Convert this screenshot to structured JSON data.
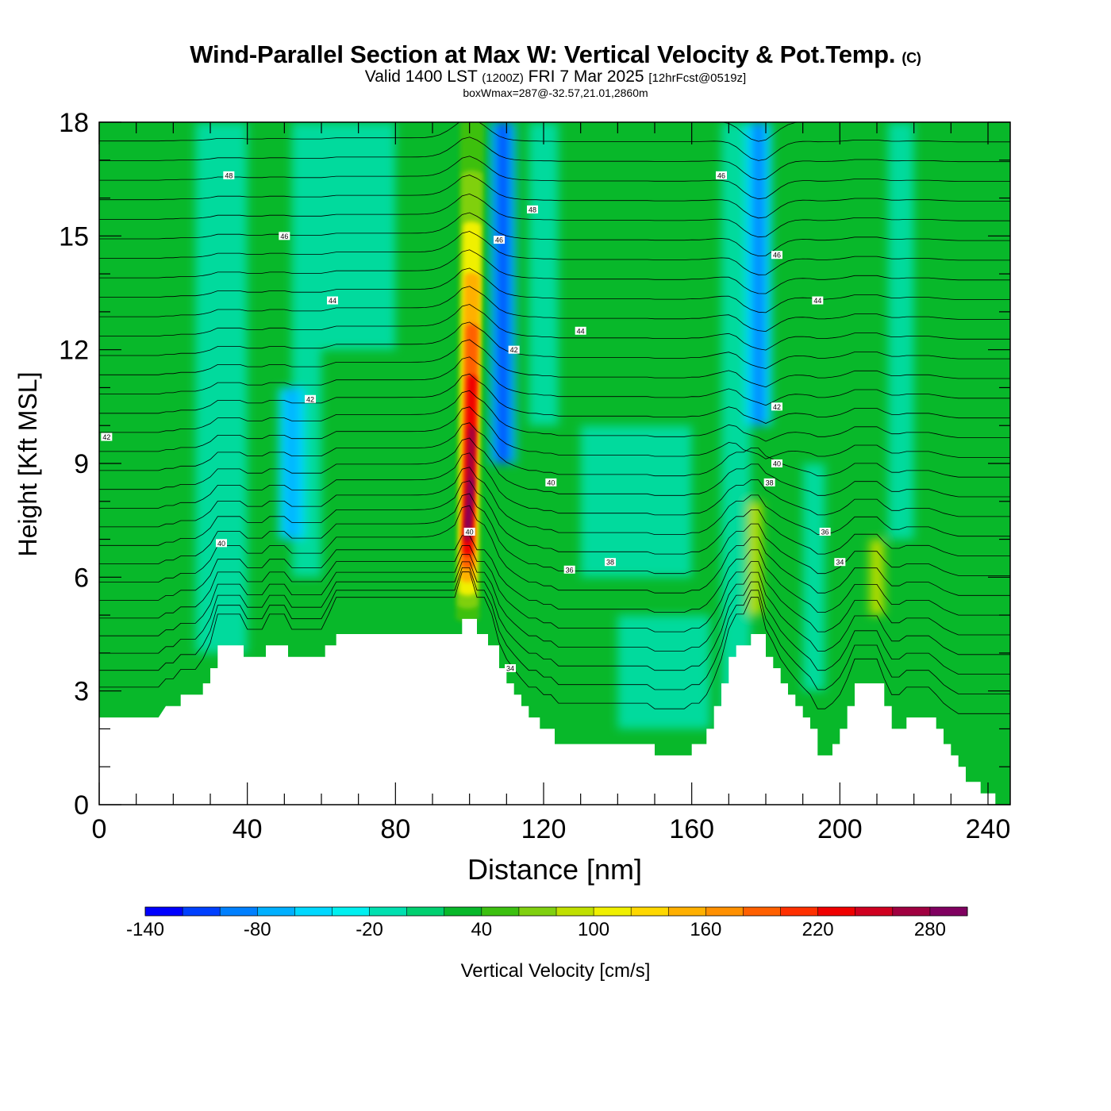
{
  "header": {
    "title": "Wind-Parallel Section at Max W: Vertical Velocity & Pot.Temp.",
    "copyright": "(C)",
    "valid_prefix": "Valid 1400 LST",
    "valid_utc": "(1200Z)",
    "valid_date": "FRI 7 Mar 2025",
    "forecast": "[12hrFcst@0519z]",
    "box_wmax": "boxWmax=287@-32.57,21.01,2860m"
  },
  "chart_data": {
    "type": "contour-section",
    "title": "Wind-Parallel Section at Max W: Vertical Velocity & Pot.Temp.",
    "xlabel": "Distance [nm]",
    "ylabel": "Height [Kft MSL]",
    "xlim": [
      0,
      246
    ],
    "ylim": [
      0,
      18
    ],
    "x_ticks": [
      "0",
      "40",
      "80",
      "120",
      "160",
      "200",
      "240"
    ],
    "y_ticks": [
      "0",
      "3",
      "6",
      "9",
      "12",
      "15",
      "18"
    ],
    "terrain_kft": [
      [
        0,
        2.3
      ],
      [
        16,
        2.3
      ],
      [
        18,
        2.6
      ],
      [
        22,
        2.6
      ],
      [
        22,
        2.9
      ],
      [
        28,
        2.9
      ],
      [
        28,
        3.2
      ],
      [
        30,
        3.2
      ],
      [
        30,
        3.6
      ],
      [
        32,
        3.6
      ],
      [
        32,
        4.2
      ],
      [
        39,
        4.2
      ],
      [
        39,
        3.9
      ],
      [
        45,
        3.9
      ],
      [
        45,
        4.2
      ],
      [
        51,
        4.2
      ],
      [
        51,
        3.9
      ],
      [
        61,
        3.9
      ],
      [
        61,
        4.2
      ],
      [
        64,
        4.2
      ],
      [
        64,
        4.5
      ],
      [
        98,
        4.5
      ],
      [
        98,
        4.9
      ],
      [
        102,
        4.9
      ],
      [
        102,
        4.5
      ],
      [
        105,
        4.5
      ],
      [
        105,
        4.2
      ],
      [
        108,
        4.2
      ],
      [
        108,
        3.6
      ],
      [
        110,
        3.6
      ],
      [
        110,
        3.2
      ],
      [
        112,
        3.2
      ],
      [
        112,
        2.9
      ],
      [
        114,
        2.9
      ],
      [
        114,
        2.6
      ],
      [
        116,
        2.6
      ],
      [
        116,
        2.3
      ],
      [
        119,
        2.3
      ],
      [
        119,
        2.0
      ],
      [
        123,
        2.0
      ],
      [
        123,
        1.6
      ],
      [
        150,
        1.6
      ],
      [
        150,
        1.3
      ],
      [
        160,
        1.3
      ],
      [
        160,
        1.6
      ],
      [
        164,
        1.6
      ],
      [
        164,
        2.0
      ],
      [
        166,
        2.0
      ],
      [
        166,
        2.6
      ],
      [
        168,
        2.6
      ],
      [
        168,
        3.2
      ],
      [
        170,
        3.2
      ],
      [
        170,
        3.9
      ],
      [
        172,
        3.9
      ],
      [
        172,
        4.2
      ],
      [
        176,
        4.2
      ],
      [
        176,
        4.5
      ],
      [
        180,
        4.5
      ],
      [
        180,
        3.9
      ],
      [
        182,
        3.9
      ],
      [
        182,
        3.6
      ],
      [
        184,
        3.6
      ],
      [
        184,
        3.2
      ],
      [
        186,
        3.2
      ],
      [
        186,
        2.9
      ],
      [
        188,
        2.9
      ],
      [
        188,
        2.6
      ],
      [
        190,
        2.6
      ],
      [
        190,
        2.3
      ],
      [
        192,
        2.3
      ],
      [
        192,
        2.0
      ],
      [
        194,
        2.0
      ],
      [
        194,
        1.3
      ],
      [
        198,
        1.3
      ],
      [
        198,
        1.6
      ],
      [
        200,
        1.6
      ],
      [
        200,
        2.0
      ],
      [
        202,
        2.0
      ],
      [
        202,
        2.6
      ],
      [
        204,
        2.6
      ],
      [
        204,
        3.2
      ],
      [
        212,
        3.2
      ],
      [
        212,
        2.6
      ],
      [
        214,
        2.6
      ],
      [
        214,
        2.0
      ],
      [
        218,
        2.0
      ],
      [
        218,
        2.3
      ],
      [
        226,
        2.3
      ],
      [
        226,
        2.0
      ],
      [
        228,
        2.0
      ],
      [
        228,
        1.6
      ],
      [
        230,
        1.6
      ],
      [
        230,
        1.3
      ],
      [
        232,
        1.3
      ],
      [
        232,
        1.0
      ],
      [
        234,
        1.0
      ],
      [
        234,
        0.6
      ],
      [
        238,
        0.6
      ],
      [
        238,
        0.3
      ],
      [
        242,
        0.3
      ],
      [
        242,
        0
      ],
      [
        246,
        0
      ]
    ],
    "w_features": [
      {
        "kind": "updraft-core",
        "x_center": 99.5,
        "z_bottom": 4.9,
        "z_top": 18,
        "max_cm_s": 287
      },
      {
        "kind": "downdraft-band",
        "x_center": 109,
        "z_bottom": 9,
        "z_top": 18,
        "min_cm_s": -80
      },
      {
        "kind": "downdraft-band",
        "x_center": 178,
        "z_bottom": 10,
        "z_top": 18,
        "min_cm_s": -60
      },
      {
        "kind": "downdraft-band",
        "x_center": 52,
        "z_bottom": 7,
        "z_top": 11,
        "min_cm_s": -50
      },
      {
        "kind": "updraft-band",
        "x_center": 177,
        "z_bottom": 5,
        "z_top": 8,
        "max_cm_s": 60
      },
      {
        "kind": "updraft-band",
        "x_center": 210,
        "z_bottom": 5,
        "z_top": 7,
        "max_cm_s": 60
      }
    ],
    "theta_labels": [
      {
        "text": "48",
        "x": 35,
        "z": 16.6
      },
      {
        "text": "46",
        "x": 50,
        "z": 15.0
      },
      {
        "text": "44",
        "x": 63,
        "z": 13.3
      },
      {
        "text": "42",
        "x": 57,
        "z": 10.7
      },
      {
        "text": "42",
        "x": 2,
        "z": 9.7
      },
      {
        "text": "40",
        "x": 33,
        "z": 6.9
      },
      {
        "text": "48",
        "x": 117,
        "z": 15.7
      },
      {
        "text": "46",
        "x": 108,
        "z": 14.9
      },
      {
        "text": "44",
        "x": 130,
        "z": 12.5
      },
      {
        "text": "42",
        "x": 112,
        "z": 12.0
      },
      {
        "text": "40",
        "x": 122,
        "z": 8.5
      },
      {
        "text": "40",
        "x": 100,
        "z": 7.2
      },
      {
        "text": "38",
        "x": 138,
        "z": 6.4
      },
      {
        "text": "36",
        "x": 127,
        "z": 6.2
      },
      {
        "text": "34",
        "x": 111,
        "z": 3.6
      },
      {
        "text": "46",
        "x": 168,
        "z": 16.6
      },
      {
        "text": "46",
        "x": 183,
        "z": 14.5
      },
      {
        "text": "44",
        "x": 194,
        "z": 13.3
      },
      {
        "text": "42",
        "x": 183,
        "z": 10.5
      },
      {
        "text": "40",
        "x": 183,
        "z": 9.0
      },
      {
        "text": "38",
        "x": 181,
        "z": 8.5
      },
      {
        "text": "36",
        "x": 196,
        "z": 7.2
      },
      {
        "text": "34",
        "x": 200,
        "z": 6.4
      }
    ],
    "colorbar": {
      "label": "Vertical Velocity [cm/s]",
      "tick_labels": [
        "-140",
        "-80",
        "-20",
        "40",
        "100",
        "160",
        "220",
        "280"
      ],
      "levels": [
        -140,
        -120,
        -100,
        -80,
        -60,
        -40,
        -20,
        0,
        20,
        40,
        60,
        80,
        100,
        120,
        140,
        160,
        180,
        200,
        220,
        240,
        260,
        280,
        300
      ],
      "colors": [
        "#0000ff",
        "#0040ff",
        "#0080ff",
        "#00b0ff",
        "#00d8ff",
        "#00f0f0",
        "#00e0b0",
        "#00d070",
        "#08b82a",
        "#3cc010",
        "#80d010",
        "#c0e000",
        "#f0f000",
        "#ffd800",
        "#ffb000",
        "#ff9000",
        "#ff6000",
        "#ff3000",
        "#f00000",
        "#d00020",
        "#a00040",
        "#800060"
      ]
    }
  }
}
